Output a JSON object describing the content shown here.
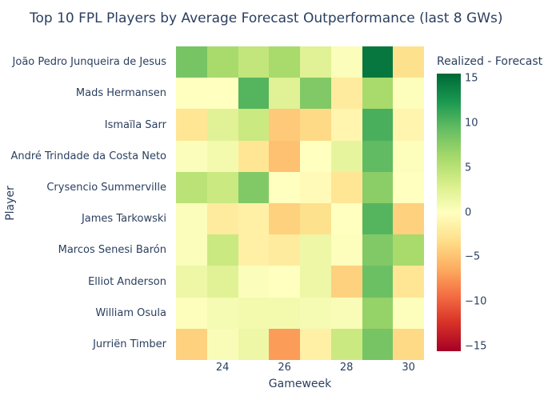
{
  "colors": {
    "text": "#2a3f5f",
    "background": "#ffffff"
  },
  "chart_data": {
    "type": "heatmap",
    "title": "Top 10 FPL Players by Average Forecast Outperformance (last 8 GWs)",
    "xlabel": "Gameweek",
    "ylabel": "Player",
    "x": [
      23,
      24,
      25,
      26,
      27,
      28,
      29,
      30
    ],
    "x_tick_values": [
      24,
      26,
      28,
      30
    ],
    "x_tick_labels": [
      "24",
      "26",
      "28",
      "30"
    ],
    "players": [
      "João Pedro Junqueira de Jesus",
      "Mads Hermansen",
      "Ismaïla Sarr",
      "André Trindade da Costa Neto",
      "Crysencio Summerville",
      "James Tarkowski",
      "Marcos Senesi Barón",
      "Elliot Anderson",
      "William Osula",
      "Jurriën Timber"
    ],
    "values": [
      [
        8.5,
        6,
        4.5,
        6,
        2.5,
        0.3,
        14.5,
        -3
      ],
      [
        0,
        0,
        10,
        2.5,
        8,
        -2,
        6,
        0.2
      ],
      [
        -2.5,
        2.5,
        4,
        -4.5,
        -3.5,
        -1,
        10.5,
        -1
      ],
      [
        0.3,
        1,
        -2.5,
        -5,
        0,
        2,
        9.5,
        0.2
      ],
      [
        5,
        4,
        8,
        0,
        -0.5,
        -2.5,
        7.5,
        0
      ],
      [
        0.3,
        -2,
        -1.5,
        -4,
        -3,
        0,
        10,
        -4
      ],
      [
        0.3,
        4,
        -1.5,
        -2,
        1.5,
        0.2,
        8,
        6
      ],
      [
        1.5,
        2.5,
        0.3,
        0,
        1.5,
        -4,
        9,
        -2.5
      ],
      [
        0.2,
        0.8,
        1,
        1,
        0.8,
        0.5,
        7,
        0.2
      ],
      [
        -4,
        0.5,
        1.5,
        -7,
        -1.5,
        4,
        8.5,
        -3.5
      ]
    ],
    "colorbar": {
      "title": "Realized - Forecast",
      "tick_values": [
        15,
        10,
        5,
        0,
        -5,
        -10,
        -15
      ],
      "tick_labels": [
        "15",
        "10",
        "5",
        "0",
        "−5",
        "−10",
        "−15"
      ],
      "range": [
        -15.5,
        15.5
      ]
    },
    "colorscale": [
      [
        0.0,
        "#a50026"
      ],
      [
        0.1,
        "#d73027"
      ],
      [
        0.2,
        "#f46d43"
      ],
      [
        0.3,
        "#fdae61"
      ],
      [
        0.4,
        "#fee08b"
      ],
      [
        0.5,
        "#ffffbf"
      ],
      [
        0.6,
        "#d9ef8b"
      ],
      [
        0.7,
        "#a6d96a"
      ],
      [
        0.8,
        "#66bd63"
      ],
      [
        0.9,
        "#1a9850"
      ],
      [
        1.0,
        "#006837"
      ]
    ],
    "grid": false,
    "legend_position": "right"
  }
}
